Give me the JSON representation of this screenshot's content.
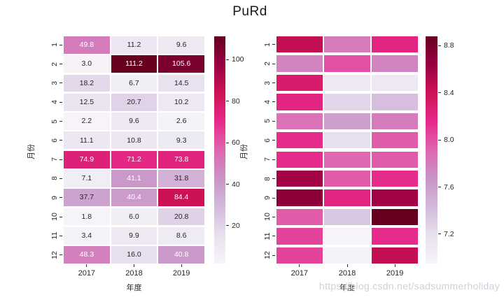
{
  "title": "PuRd",
  "watermark": "https://blog.csdn.net/sadsummerholiday",
  "colors": {
    "background": "#ffffff",
    "annotation_dark": "#262626",
    "annotation_light": "#ffffff",
    "tick_label": "#262626",
    "watermark": "#ccd1d9",
    "colormap_name": "PuRd",
    "colormap_anchors": [
      "#f7f4f9",
      "#e7e1ef",
      "#d4b9da",
      "#c994c7",
      "#df65b0",
      "#e7298a",
      "#ce1256",
      "#980043",
      "#67001f"
    ]
  },
  "chart_data": [
    {
      "type": "heatmap",
      "name": "annotated-heatmap",
      "xlabel": "年度",
      "ylabel": "月份",
      "x_categories": [
        "2017",
        "2018",
        "2019"
      ],
      "y_categories": [
        "1",
        "2",
        "3",
        "4",
        "5",
        "6",
        "7",
        "8",
        "9",
        "10",
        "11",
        "12"
      ],
      "values": [
        [
          49.8,
          11.2,
          9.6
        ],
        [
          3.0,
          111.2,
          105.6
        ],
        [
          18.2,
          6.7,
          14.5
        ],
        [
          12.5,
          20.7,
          10.2
        ],
        [
          2.2,
          9.6,
          2.6
        ],
        [
          11.1,
          10.8,
          9.3
        ],
        [
          74.9,
          71.2,
          73.8
        ],
        [
          7.1,
          41.1,
          31.8
        ],
        [
          37.7,
          40.4,
          84.4
        ],
        [
          1.8,
          6.0,
          20.8
        ],
        [
          3.4,
          9.9,
          8.6
        ],
        [
          48.3,
          16.0,
          40.8
        ]
      ],
      "annotated": true,
      "annotation_decimals": 1,
      "vmin": 1.8,
      "vmax": 111.2,
      "colorbar_tick_values": [
        20,
        40,
        60,
        80,
        100
      ],
      "colorbar_tick_labels": [
        "20",
        "40",
        "60",
        "80",
        "100"
      ],
      "grid": false,
      "legend_position": "right-colorbar"
    },
    {
      "type": "heatmap",
      "name": "color-only-heatmap",
      "xlabel": "年度",
      "ylabel": "月份",
      "x_categories": [
        "2017",
        "2018",
        "2019"
      ],
      "y_categories": [
        "1",
        "2",
        "3",
        "4",
        "5",
        "6",
        "7",
        "8",
        "9",
        "10",
        "11",
        "12"
      ],
      "values": [
        [
          8.45,
          7.8,
          8.2
        ],
        [
          7.75,
          8.0,
          7.75
        ],
        [
          8.3,
          7.1,
          7.1
        ],
        [
          8.2,
          7.25,
          7.4
        ],
        [
          7.85,
          7.6,
          7.8
        ],
        [
          8.15,
          7.2,
          7.95
        ],
        [
          8.15,
          7.9,
          7.95
        ],
        [
          8.6,
          7.95,
          8.15
        ],
        [
          8.7,
          8.2,
          8.6
        ],
        [
          7.95,
          7.35,
          8.88
        ],
        [
          8.05,
          6.95,
          8.15
        ],
        [
          8.05,
          6.98,
          8.45
        ]
      ],
      "annotated": false,
      "vmin": 6.95,
      "vmax": 8.88,
      "colorbar_tick_values": [
        7.2,
        7.6,
        8.0,
        8.4,
        8.8
      ],
      "colorbar_tick_labels": [
        "7.2",
        "7.6",
        "8.0",
        "8.4",
        "8.8"
      ],
      "grid": false,
      "legend_position": "right-colorbar"
    }
  ]
}
